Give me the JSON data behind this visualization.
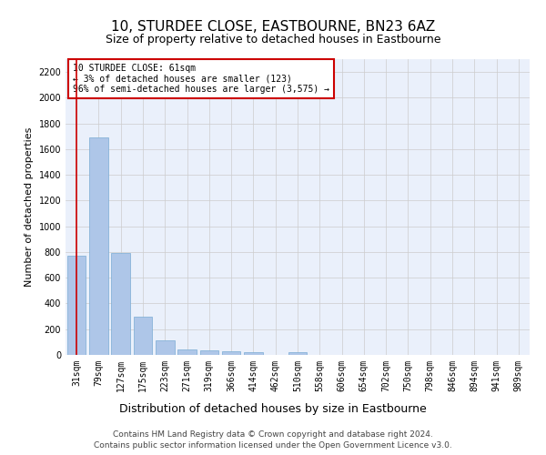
{
  "title": "10, STURDEE CLOSE, EASTBOURNE, BN23 6AZ",
  "subtitle": "Size of property relative to detached houses in Eastbourne",
  "xlabel": "Distribution of detached houses by size in Eastbourne",
  "ylabel": "Number of detached properties",
  "categories": [
    "31sqm",
    "79sqm",
    "127sqm",
    "175sqm",
    "223sqm",
    "271sqm",
    "319sqm",
    "366sqm",
    "414sqm",
    "462sqm",
    "510sqm",
    "558sqm",
    "606sqm",
    "654sqm",
    "702sqm",
    "750sqm",
    "798sqm",
    "846sqm",
    "894sqm",
    "941sqm",
    "989sqm"
  ],
  "values": [
    770,
    1690,
    795,
    300,
    110,
    45,
    32,
    28,
    22,
    0,
    22,
    0,
    0,
    0,
    0,
    0,
    0,
    0,
    0,
    0,
    0
  ],
  "bar_color": "#aec6e8",
  "bar_edge_color": "#7aacd4",
  "vline_color": "#cc0000",
  "annotation_text": "10 STURDEE CLOSE: 61sqm\n← 3% of detached houses are smaller (123)\n96% of semi-detached houses are larger (3,575) →",
  "annotation_box_color": "#ffffff",
  "annotation_box_edge_color": "#cc0000",
  "ylim": [
    0,
    2300
  ],
  "yticks": [
    0,
    200,
    400,
    600,
    800,
    1000,
    1200,
    1400,
    1600,
    1800,
    2000,
    2200
  ],
  "grid_color": "#cccccc",
  "bg_color": "#eaf0fb",
  "footer_line1": "Contains HM Land Registry data © Crown copyright and database right 2024.",
  "footer_line2": "Contains public sector information licensed under the Open Government Licence v3.0.",
  "title_fontsize": 11,
  "subtitle_fontsize": 9,
  "xlabel_fontsize": 9,
  "ylabel_fontsize": 8,
  "tick_fontsize": 7,
  "footer_fontsize": 6.5
}
